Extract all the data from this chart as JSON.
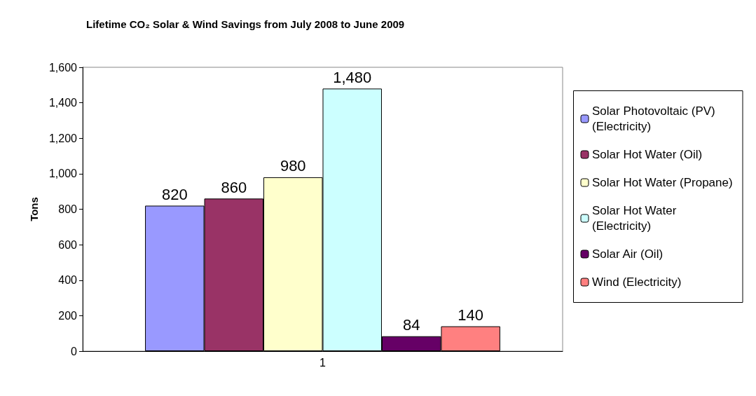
{
  "chart_data": {
    "type": "bar",
    "title": "Lifetime CO₂ Solar & Wind Savings from July 2008 to June 2009",
    "ylabel": "Tons",
    "categories": [
      "1"
    ],
    "series": [
      {
        "name": "Solar Photovoltaic (PV) (Electricity)",
        "color": "#9999ff",
        "values": [
          820
        ]
      },
      {
        "name": "Solar Hot Water (Oil)",
        "color": "#993366",
        "values": [
          860
        ]
      },
      {
        "name": "Solar Hot Water (Propane)",
        "color": "#ffffcc",
        "values": [
          980
        ]
      },
      {
        "name": "Solar Hot Water (Electricity)",
        "color": "#ccffff",
        "values": [
          1480
        ],
        "value_labels": [
          "1,480"
        ]
      },
      {
        "name": "Solar Air (Oil)",
        "color": "#660066",
        "values": [
          84
        ]
      },
      {
        "name": "Wind (Electricity)",
        "color": "#ff8080",
        "values": [
          140
        ]
      }
    ],
    "ylim": [
      0,
      1600
    ],
    "yticks": [
      0,
      200,
      400,
      {
        "value": 600,
        "label": "600"
      },
      {
        "value": 800,
        "label": "800"
      },
      {
        "value": 1000,
        "label": "1,000"
      },
      {
        "value": 1200,
        "label": "1,200"
      },
      {
        "value": 1400,
        "label": "1,400"
      },
      {
        "value": 1600,
        "label": "1,600"
      }
    ],
    "grid": false,
    "legend": "right",
    "data_labels": true
  }
}
